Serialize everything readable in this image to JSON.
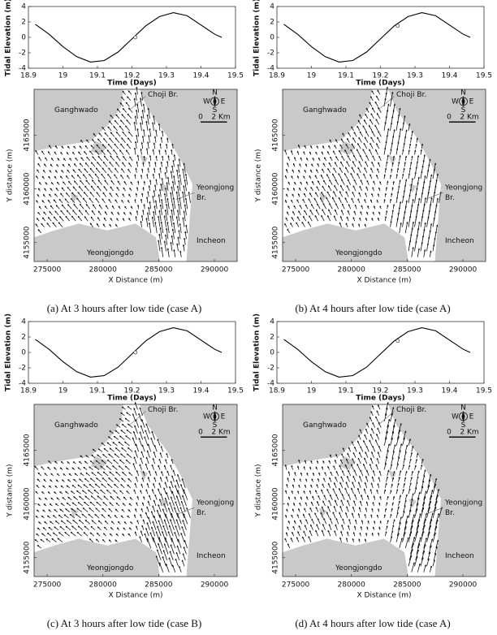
{
  "chart_data": [
    {
      "type": "line",
      "xlabel": "Time (Days)",
      "ylabel": "Tidal Elevation (m)",
      "x": [
        18.92,
        18.96,
        19.0,
        19.04,
        19.08,
        19.12,
        19.16,
        19.2,
        19.24,
        19.28,
        19.32,
        19.36,
        19.4,
        19.44,
        19.46
      ],
      "values": [
        1.7,
        0.4,
        -1.2,
        -2.5,
        -3.2,
        -3.0,
        -1.9,
        -0.2,
        1.5,
        2.7,
        3.2,
        2.8,
        1.6,
        0.4,
        0.0
      ],
      "color": "#000000",
      "current_time": 19.21,
      "current_elevation": 0.0,
      "xlim": [
        18.9,
        19.5
      ],
      "xticks": [
        18.9,
        19,
        19.1,
        19.2,
        19.3,
        19.4,
        19.5
      ],
      "ylim": [
        -4,
        4
      ],
      "yticks": [
        -4,
        -2,
        0,
        2,
        4
      ]
    },
    {
      "type": "map",
      "xlabel": "X Distance (m)",
      "ylabel": "Y distance (m)",
      "xlim": [
        273830,
        292040
      ],
      "xticks": [
        275000,
        280000,
        285000,
        290000
      ],
      "ylim": [
        4153240,
        4169260
      ],
      "yticks": [
        4155000,
        4160000,
        4165000
      ],
      "labels": [
        "Ganghwado",
        "Choji Br.",
        "Yeongjong",
        "Br.",
        "Incheon",
        "Yeongjongdo",
        "N",
        "S",
        "E",
        "W",
        "0",
        "2 Km"
      ],
      "caption": "(a) At 3 hours after low tide (case A)"
    },
    {
      "type": "line",
      "xlabel": "Time (Days)",
      "ylabel": "Tidal Elevation (m)",
      "x": [
        18.92,
        18.96,
        19.0,
        19.04,
        19.08,
        19.12,
        19.16,
        19.2,
        19.24,
        19.28,
        19.32,
        19.36,
        19.4,
        19.44,
        19.46
      ],
      "values": [
        1.7,
        0.4,
        -1.2,
        -2.5,
        -3.2,
        -3.0,
        -1.9,
        -0.2,
        1.5,
        2.7,
        3.2,
        2.8,
        1.6,
        0.4,
        0.0
      ],
      "color": "#000000",
      "current_time": 19.25,
      "current_elevation": 1.5,
      "xlim": [
        18.9,
        19.5
      ],
      "xticks": [
        18.9,
        19,
        19.1,
        19.2,
        19.3,
        19.4,
        19.5
      ],
      "ylim": [
        -4,
        4
      ],
      "yticks": [
        -4,
        -2,
        0,
        2,
        4
      ]
    },
    {
      "type": "map",
      "xlabel": "X Distance (m)",
      "ylabel": "Y distance (m)",
      "xlim": [
        273830,
        292040
      ],
      "xticks": [
        275000,
        280000,
        285000,
        290000
      ],
      "ylim": [
        4153240,
        4169260
      ],
      "yticks": [
        4155000,
        4160000,
        4165000
      ],
      "labels": [
        "Ganghwado",
        "Choji Br.",
        "Yeongjong",
        "Br.",
        "Incheon",
        "Yeongjongdo",
        "N",
        "S",
        "E",
        "W",
        "0",
        "2 Km"
      ],
      "caption": "(b) At 4 hours after low tide (case A)"
    },
    {
      "type": "line",
      "xlabel": "Time (Days)",
      "ylabel": "Tidal Elevation (m)",
      "x": [
        18.92,
        18.96,
        19.0,
        19.04,
        19.08,
        19.12,
        19.16,
        19.2,
        19.24,
        19.28,
        19.32,
        19.36,
        19.4,
        19.44,
        19.46
      ],
      "values": [
        1.7,
        0.4,
        -1.2,
        -2.5,
        -3.2,
        -3.0,
        -1.9,
        -0.2,
        1.5,
        2.7,
        3.2,
        2.8,
        1.6,
        0.4,
        0.0
      ],
      "color": "#000000",
      "current_time": 19.21,
      "current_elevation": 0.0,
      "xlim": [
        18.9,
        19.5
      ],
      "xticks": [
        18.9,
        19,
        19.1,
        19.2,
        19.3,
        19.4,
        19.5
      ],
      "ylim": [
        -4,
        4
      ],
      "yticks": [
        -4,
        -2,
        0,
        2,
        4
      ]
    },
    {
      "type": "map",
      "xlabel": "X Distance (m)",
      "ylabel": "Y distance (m)",
      "xlim": [
        273830,
        292040
      ],
      "xticks": [
        275000,
        280000,
        285000,
        290000
      ],
      "ylim": [
        4153240,
        4169260
      ],
      "yticks": [
        4155000,
        4160000,
        4165000
      ],
      "labels": [
        "Ganghwado",
        "Choji Br.",
        "Yeongjong",
        "Br.",
        "Incheon",
        "Yeongjongdo",
        "N",
        "S",
        "E",
        "W",
        "0",
        "2 Km"
      ],
      "caption": "(c) At 3 hours after low tide (case B)"
    },
    {
      "type": "line",
      "xlabel": "Time (Days)",
      "ylabel": "Tidal Elevation (m)",
      "x": [
        18.92,
        18.96,
        19.0,
        19.04,
        19.08,
        19.12,
        19.16,
        19.2,
        19.24,
        19.28,
        19.32,
        19.36,
        19.4,
        19.44,
        19.46
      ],
      "values": [
        1.7,
        0.4,
        -1.2,
        -2.5,
        -3.2,
        -3.0,
        -1.9,
        -0.2,
        1.5,
        2.7,
        3.2,
        2.8,
        1.6,
        0.4,
        0.0
      ],
      "color": "#000000",
      "current_time": 19.25,
      "current_elevation": 1.5,
      "xlim": [
        18.9,
        19.5
      ],
      "xticks": [
        18.9,
        19,
        19.1,
        19.2,
        19.3,
        19.4,
        19.5
      ],
      "ylim": [
        -4,
        4
      ],
      "yticks": [
        -4,
        -2,
        0,
        2,
        4
      ]
    },
    {
      "type": "map",
      "xlabel": "X Distance (m)",
      "ylabel": "Y distance (m)",
      "xlim": [
        273830,
        292040
      ],
      "xticks": [
        275000,
        280000,
        285000,
        290000
      ],
      "ylim": [
        4153240,
        4169260
      ],
      "yticks": [
        4155000,
        4160000,
        4165000
      ],
      "labels": [
        "Ganghwado",
        "Choji Br.",
        "Yeongjong",
        "Br.",
        "Incheon",
        "Yeongjongdo",
        "N",
        "S",
        "E",
        "W",
        "0",
        "2 Km"
      ],
      "caption": "(d) At 4 hours after low tide (case A)"
    }
  ]
}
